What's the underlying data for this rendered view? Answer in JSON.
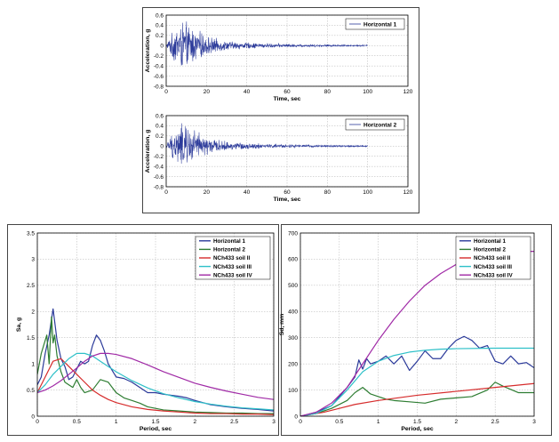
{
  "colors": {
    "horizontal_1": "#2b3a9a",
    "horizontal_2": "#2e7d32",
    "soil_ii": "#d62c2c",
    "soil_iii": "#2ec0c8",
    "soil_iv": "#a02aa6",
    "grid": "#b0b0b0",
    "axis": "#000000"
  },
  "chart_data": [
    {
      "id": "acc1",
      "type": "line",
      "xlabel": "Time, sec",
      "ylabel": "Acceleration, g",
      "xlim": [
        0,
        120
      ],
      "ylim": [
        -0.8,
        0.6
      ],
      "xticks": [
        "0",
        "20",
        "40",
        "60",
        "80",
        "100",
        "120"
      ],
      "yticks": [
        "-0.8",
        "-0.6",
        "-0.4",
        "-0.2",
        "0",
        "0.2",
        "0.4",
        "0.6"
      ],
      "grid": true,
      "legend_position": "top-right",
      "series": [
        {
          "name": "Horizontal 1",
          "color_key": "horizontal_1",
          "envelope": {
            "x": [
              0,
              2,
              5,
              8,
              10,
              12,
              15,
              20,
              25,
              30,
              40,
              50,
              60,
              70,
              80,
              90,
              100
            ],
            "y": [
              0.02,
              0.2,
              0.45,
              0.55,
              0.5,
              0.45,
              0.35,
              0.22,
              0.15,
              0.1,
              0.07,
              0.05,
              0.04,
              0.03,
              0.025,
              0.02,
              0.02
            ]
          }
        }
      ]
    },
    {
      "id": "acc2",
      "type": "line",
      "xlabel": "Time, sec",
      "ylabel": "Acceleration, g",
      "xlim": [
        0,
        120
      ],
      "ylim": [
        -0.8,
        0.6
      ],
      "xticks": [
        "0",
        "20",
        "40",
        "60",
        "80",
        "100",
        "120"
      ],
      "yticks": [
        "-0.8",
        "-0.6",
        "-0.4",
        "-0.2",
        "0",
        "0.2",
        "0.4",
        "0.6"
      ],
      "grid": true,
      "legend_position": "top-right",
      "series": [
        {
          "name": "Horizontal 2",
          "color_key": "horizontal_1",
          "envelope": {
            "x": [
              0,
              2,
              5,
              8,
              10,
              12,
              15,
              20,
              25,
              30,
              40,
              50,
              60,
              70,
              80,
              90,
              100
            ],
            "y": [
              0.02,
              0.2,
              0.4,
              0.5,
              0.48,
              0.42,
              0.33,
              0.2,
              0.14,
              0.1,
              0.07,
              0.05,
              0.04,
              0.03,
              0.025,
              0.02,
              0.02
            ]
          }
        }
      ]
    },
    {
      "id": "sa",
      "type": "line",
      "xlabel": "Period, sec",
      "ylabel": "Sa, g",
      "xlim": [
        0,
        3
      ],
      "ylim": [
        0,
        3.5
      ],
      "xticks": [
        "0",
        "0.5",
        "1",
        "1.5",
        "2",
        "2.5",
        "3"
      ],
      "yticks": [
        "0",
        "0.5",
        "1",
        "1.5",
        "2",
        "2.5",
        "3",
        "3.5"
      ],
      "grid": true,
      "legend_position": "top-right",
      "series": [
        {
          "name": "Horizontal 1",
          "color_key": "horizontal_1",
          "x": [
            0,
            0.05,
            0.1,
            0.15,
            0.2,
            0.25,
            0.3,
            0.35,
            0.4,
            0.45,
            0.5,
            0.55,
            0.6,
            0.65,
            0.7,
            0.75,
            0.8,
            0.85,
            0.9,
            1.0,
            1.1,
            1.2,
            1.3,
            1.4,
            1.5,
            1.6,
            1.7,
            1.8,
            1.9,
            2.0,
            2.2,
            2.4,
            2.6,
            2.8,
            3.0
          ],
          "y": [
            0.6,
            0.75,
            1.2,
            1.55,
            2.05,
            1.45,
            1.1,
            0.95,
            0.7,
            0.75,
            0.9,
            1.05,
            1.0,
            1.05,
            1.35,
            1.55,
            1.45,
            1.25,
            1.0,
            0.75,
            0.72,
            0.65,
            0.55,
            0.45,
            0.45,
            0.42,
            0.4,
            0.38,
            0.35,
            0.3,
            0.22,
            0.18,
            0.15,
            0.13,
            0.1
          ]
        },
        {
          "name": "Horizontal 2",
          "color_key": "horizontal_2",
          "x": [
            0,
            0.05,
            0.1,
            0.12,
            0.15,
            0.18,
            0.2,
            0.22,
            0.25,
            0.3,
            0.35,
            0.4,
            0.45,
            0.5,
            0.55,
            0.6,
            0.7,
            0.8,
            0.9,
            1.0,
            1.1,
            1.2,
            1.3,
            1.4,
            1.5,
            1.6,
            1.8,
            2.0,
            2.2,
            2.4,
            2.6,
            2.8,
            3.0
          ],
          "y": [
            0.8,
            1.2,
            1.45,
            1.55,
            1.0,
            1.9,
            1.4,
            1.55,
            1.15,
            0.85,
            0.65,
            0.6,
            0.55,
            0.7,
            0.55,
            0.45,
            0.5,
            0.7,
            0.65,
            0.45,
            0.35,
            0.3,
            0.25,
            0.18,
            0.15,
            0.12,
            0.1,
            0.08,
            0.07,
            0.06,
            0.06,
            0.05,
            0.05
          ]
        },
        {
          "name": "NCh433  soil  II",
          "color_key": "soil_ii",
          "x": [
            0,
            0.1,
            0.2,
            0.3,
            0.4,
            0.5,
            0.6,
            0.7,
            0.8,
            0.9,
            1.0,
            1.2,
            1.4,
            1.6,
            1.8,
            2.0,
            2.2,
            2.4,
            2.6,
            2.8,
            3.0
          ],
          "y": [
            0.45,
            0.75,
            1.05,
            1.1,
            0.95,
            0.8,
            0.65,
            0.5,
            0.4,
            0.32,
            0.26,
            0.18,
            0.13,
            0.1,
            0.08,
            0.06,
            0.05,
            0.05,
            0.04,
            0.04,
            0.03
          ]
        },
        {
          "name": "NCh433  soil  III",
          "color_key": "soil_iii",
          "x": [
            0,
            0.1,
            0.2,
            0.3,
            0.4,
            0.5,
            0.6,
            0.7,
            0.8,
            0.9,
            1.0,
            1.2,
            1.4,
            1.6,
            1.8,
            2.0,
            2.2,
            2.4,
            2.6,
            2.8,
            3.0
          ],
          "y": [
            0.45,
            0.6,
            0.8,
            0.95,
            1.1,
            1.2,
            1.2,
            1.15,
            1.05,
            0.95,
            0.85,
            0.68,
            0.54,
            0.43,
            0.35,
            0.28,
            0.23,
            0.19,
            0.16,
            0.14,
            0.12
          ]
        },
        {
          "name": "NCh433  soil  IV",
          "color_key": "soil_iv",
          "x": [
            0,
            0.1,
            0.2,
            0.3,
            0.4,
            0.5,
            0.6,
            0.7,
            0.8,
            0.9,
            1.0,
            1.2,
            1.4,
            1.6,
            1.8,
            2.0,
            2.2,
            2.4,
            2.6,
            2.8,
            3.0
          ],
          "y": [
            0.45,
            0.5,
            0.58,
            0.68,
            0.8,
            0.92,
            1.05,
            1.15,
            1.2,
            1.2,
            1.18,
            1.1,
            0.98,
            0.85,
            0.74,
            0.63,
            0.55,
            0.48,
            0.42,
            0.36,
            0.32
          ]
        }
      ]
    },
    {
      "id": "sd",
      "type": "line",
      "xlabel": "Period, sec",
      "ylabel": "Sd, mm",
      "xlim": [
        0,
        3
      ],
      "ylim": [
        0,
        700
      ],
      "xticks": [
        "0",
        "0.5",
        "1",
        "1.5",
        "2",
        "2.5",
        "3"
      ],
      "yticks": [
        "0",
        "100",
        "200",
        "300",
        "400",
        "500",
        "600",
        "700"
      ],
      "grid": true,
      "legend_position": "top-right",
      "series": [
        {
          "name": "Horizontal 1",
          "color_key": "horizontal_1",
          "x": [
            0,
            0.2,
            0.4,
            0.6,
            0.7,
            0.75,
            0.8,
            0.85,
            0.9,
            1.0,
            1.1,
            1.2,
            1.3,
            1.4,
            1.5,
            1.6,
            1.7,
            1.8,
            1.9,
            2.0,
            2.1,
            2.2,
            2.3,
            2.4,
            2.5,
            2.6,
            2.7,
            2.8,
            2.9,
            3.0
          ],
          "y": [
            0,
            15,
            40,
            110,
            150,
            215,
            180,
            220,
            200,
            210,
            230,
            200,
            230,
            175,
            210,
            250,
            220,
            220,
            260,
            290,
            305,
            290,
            260,
            270,
            210,
            200,
            230,
            200,
            205,
            185
          ]
        },
        {
          "name": "Horizontal 2",
          "color_key": "horizontal_2",
          "x": [
            0,
            0.2,
            0.4,
            0.6,
            0.7,
            0.8,
            0.9,
            1.0,
            1.1,
            1.2,
            1.4,
            1.6,
            1.8,
            2.0,
            2.2,
            2.4,
            2.5,
            2.6,
            2.8,
            3.0
          ],
          "y": [
            0,
            10,
            30,
            60,
            90,
            110,
            85,
            75,
            65,
            60,
            55,
            50,
            65,
            70,
            75,
            100,
            130,
            115,
            90,
            90
          ]
        },
        {
          "name": "NCh433  soil  II",
          "color_key": "soil_ii",
          "x": [
            0,
            0.3,
            0.5,
            0.7,
            1.0,
            1.5,
            2.0,
            2.5,
            3.0
          ],
          "y": [
            0,
            15,
            30,
            45,
            60,
            80,
            95,
            110,
            125
          ]
        },
        {
          "name": "NCh433  soil  III",
          "color_key": "soil_iii",
          "x": [
            0,
            0.2,
            0.4,
            0.6,
            0.8,
            1.0,
            1.2,
            1.4,
            1.6,
            1.8,
            2.0,
            2.5,
            3.0
          ],
          "y": [
            0,
            10,
            40,
            100,
            170,
            210,
            232,
            245,
            252,
            256,
            258,
            260,
            260
          ]
        },
        {
          "name": "NCh433  soil  IV",
          "color_key": "soil_iv",
          "x": [
            0,
            0.2,
            0.4,
            0.6,
            0.8,
            1.0,
            1.2,
            1.4,
            1.6,
            1.8,
            2.0,
            2.2,
            2.4,
            2.6,
            3.0
          ],
          "y": [
            0,
            15,
            50,
            110,
            200,
            290,
            370,
            440,
            500,
            545,
            580,
            605,
            620,
            628,
            630
          ]
        }
      ]
    }
  ]
}
